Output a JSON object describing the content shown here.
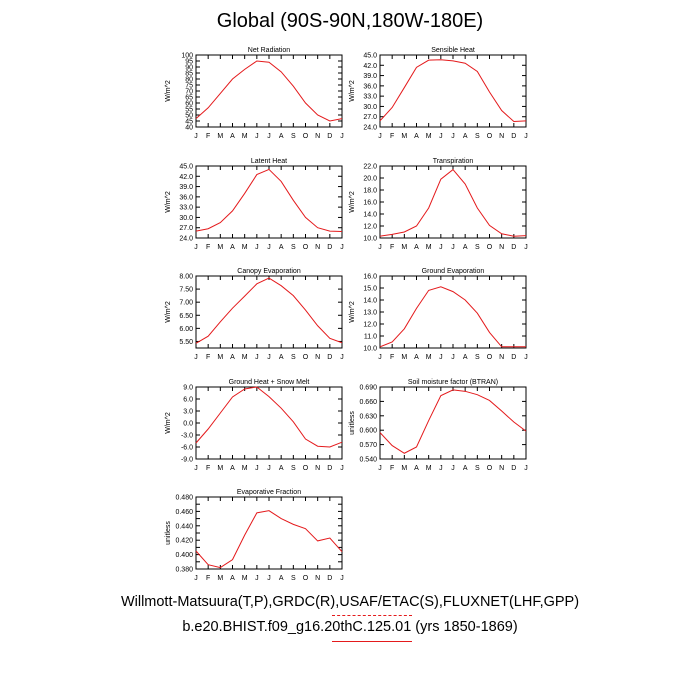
{
  "title": "Global (90S-90N,180W-180E)",
  "credits": {
    "line1": "Willmott-Matsuura(T,P),GRDC(R),USAF/ETAC(S),FLUXNET(LHF,GPP)",
    "line2": "b.e20.BHIST.f09_g16.20thC.125.01 (yrs 1850-1869)"
  },
  "colors": {
    "series": "#e41a1c",
    "axes": "#000000"
  },
  "chart_data": [
    {
      "type": "line",
      "title": "Net Radiation",
      "ylabel": "W/m^2",
      "x": [
        "J",
        "F",
        "M",
        "A",
        "M",
        "J",
        "J",
        "A",
        "S",
        "O",
        "N",
        "D",
        "J"
      ],
      "ylim": [
        40,
        100
      ],
      "yticks": [
        40,
        45,
        50,
        55,
        60,
        65,
        70,
        75,
        80,
        85,
        90,
        95,
        100
      ],
      "ytick_labels": [
        "40",
        "45",
        "50",
        "55",
        "60",
        "65",
        "70",
        "75",
        "80",
        "85",
        "90",
        "95",
        "100"
      ],
      "series": [
        {
          "values": [
            47,
            56,
            68,
            80,
            88,
            95,
            94,
            86,
            74,
            60,
            50,
            45,
            47
          ]
        }
      ]
    },
    {
      "type": "line",
      "title": "Sensible Heat",
      "ylabel": "W/m^2",
      "x": [
        "J",
        "F",
        "M",
        "A",
        "M",
        "J",
        "J",
        "A",
        "S",
        "O",
        "N",
        "D",
        "J"
      ],
      "ylim": [
        24,
        45
      ],
      "yticks": [
        24,
        27,
        30,
        33,
        36,
        39,
        42,
        45
      ],
      "ytick_labels": [
        "24.0",
        "27.0",
        "30.0",
        "33.0",
        "36.0",
        "39.0",
        "42.0",
        "45.0"
      ],
      "series": [
        {
          "values": [
            25.8,
            29.7,
            35.5,
            41.4,
            43.5,
            43.6,
            43.3,
            42.6,
            40.2,
            34.2,
            28.8,
            25.6,
            25.8
          ]
        }
      ]
    },
    {
      "type": "line",
      "title": "Latent Heat",
      "ylabel": "W/m^2",
      "x": [
        "J",
        "F",
        "M",
        "A",
        "M",
        "J",
        "J",
        "A",
        "S",
        "O",
        "N",
        "D",
        "J"
      ],
      "ylim": [
        24,
        45
      ],
      "yticks": [
        24,
        27,
        30,
        33,
        36,
        39,
        42,
        45
      ],
      "ytick_labels": [
        "24.0",
        "27.0",
        "30.0",
        "33.0",
        "36.0",
        "39.0",
        "42.0",
        "45.0"
      ],
      "series": [
        {
          "values": [
            26.0,
            26.7,
            28.5,
            31.9,
            37.0,
            42.5,
            44.0,
            40.5,
            35.0,
            30.0,
            27.0,
            26.0,
            25.9
          ]
        }
      ]
    },
    {
      "type": "line",
      "title": "Transpiration",
      "ylabel": "W/m^2",
      "x": [
        "J",
        "F",
        "M",
        "A",
        "M",
        "J",
        "J",
        "A",
        "S",
        "O",
        "N",
        "D",
        "J"
      ],
      "ylim": [
        10,
        22
      ],
      "yticks": [
        10,
        12,
        14,
        16,
        18,
        20,
        22
      ],
      "ytick_labels": [
        "10.0",
        "12.0",
        "14.0",
        "16.0",
        "18.0",
        "20.0",
        "22.0"
      ],
      "series": [
        {
          "values": [
            10.3,
            10.6,
            11.0,
            12.0,
            15.0,
            19.8,
            21.4,
            19.0,
            15.0,
            12.1,
            10.7,
            10.3,
            10.4
          ]
        }
      ]
    },
    {
      "type": "line",
      "title": "Canopy Evaporation",
      "ylabel": "W/m^2",
      "x": [
        "J",
        "F",
        "M",
        "A",
        "M",
        "J",
        "J",
        "A",
        "S",
        "O",
        "N",
        "D",
        "J"
      ],
      "ylim": [
        5.25,
        8.0
      ],
      "yticks": [
        5.5,
        6.0,
        6.5,
        7.0,
        7.5,
        8.0
      ],
      "ytick_labels": [
        "5.50",
        "6.00",
        "6.50",
        "7.00",
        "7.50",
        "8.00"
      ],
      "series": [
        {
          "values": [
            5.43,
            5.7,
            6.25,
            6.77,
            7.23,
            7.7,
            7.92,
            7.63,
            7.25,
            6.7,
            6.1,
            5.62,
            5.45
          ]
        }
      ]
    },
    {
      "type": "line",
      "title": "Ground Evaporation",
      "ylabel": "W/m^2",
      "x": [
        "J",
        "F",
        "M",
        "A",
        "M",
        "J",
        "J",
        "A",
        "S",
        "O",
        "N",
        "D",
        "J"
      ],
      "ylim": [
        10,
        16
      ],
      "yticks": [
        10,
        11,
        12,
        13,
        14,
        15,
        16
      ],
      "ytick_labels": [
        "10.0",
        "11.0",
        "12.0",
        "13.0",
        "14.0",
        "15.0",
        "16.0"
      ],
      "series": [
        {
          "values": [
            10.1,
            10.5,
            11.6,
            13.3,
            14.8,
            15.1,
            14.7,
            14.0,
            12.9,
            11.3,
            10.1,
            10.1,
            10.1
          ]
        }
      ]
    },
    {
      "type": "line",
      "title": "Ground Heat + Snow Melt",
      "ylabel": "W/m^2",
      "x": [
        "J",
        "F",
        "M",
        "A",
        "M",
        "J",
        "J",
        "A",
        "S",
        "O",
        "N",
        "D",
        "J"
      ],
      "ylim": [
        -9,
        9
      ],
      "yticks": [
        -9,
        -6,
        -3,
        0,
        3,
        6,
        9
      ],
      "ytick_labels": [
        "-9.0",
        "-6.0",
        "-3.0",
        "0.0",
        "3.0",
        "6.0",
        "9.0"
      ],
      "series": [
        {
          "values": [
            -5.0,
            -1.5,
            2.5,
            6.5,
            8.5,
            9.0,
            6.6,
            3.7,
            0.3,
            -4.0,
            -5.8,
            -6.0,
            -4.8
          ]
        }
      ]
    },
    {
      "type": "line",
      "title": "Soil moisture factor (BTRAN)",
      "ylabel": "unitless",
      "x": [
        "J",
        "F",
        "M",
        "A",
        "M",
        "J",
        "J",
        "A",
        "S",
        "O",
        "N",
        "D",
        "J"
      ],
      "ylim": [
        0.54,
        0.69
      ],
      "yticks": [
        0.54,
        0.57,
        0.6,
        0.63,
        0.66,
        0.69
      ],
      "ytick_labels": [
        "0.540",
        "0.570",
        "0.600",
        "0.630",
        "0.660",
        "0.690"
      ],
      "series": [
        {
          "values": [
            0.595,
            0.568,
            0.552,
            0.565,
            0.62,
            0.672,
            0.684,
            0.681,
            0.674,
            0.662,
            0.64,
            0.617,
            0.598
          ]
        }
      ]
    },
    {
      "type": "line",
      "title": "Evaporative Fraction",
      "ylabel": "unitless",
      "x": [
        "J",
        "F",
        "M",
        "A",
        "M",
        "J",
        "J",
        "A",
        "S",
        "O",
        "N",
        "D",
        "J"
      ],
      "ylim": [
        0.38,
        0.48
      ],
      "yticks": [
        0.38,
        0.39,
        0.4,
        0.41,
        0.42,
        0.43,
        0.44,
        0.45,
        0.46,
        0.47,
        0.48
      ],
      "ytick_labels": [
        "0.380",
        "",
        "0.400",
        "",
        "0.420",
        "",
        "0.440",
        "",
        "0.460",
        "",
        "0.480"
      ],
      "series": [
        {
          "values": [
            0.405,
            0.386,
            0.382,
            0.393,
            0.427,
            0.458,
            0.461,
            0.45,
            0.442,
            0.436,
            0.419,
            0.423,
            0.404
          ]
        }
      ]
    }
  ]
}
